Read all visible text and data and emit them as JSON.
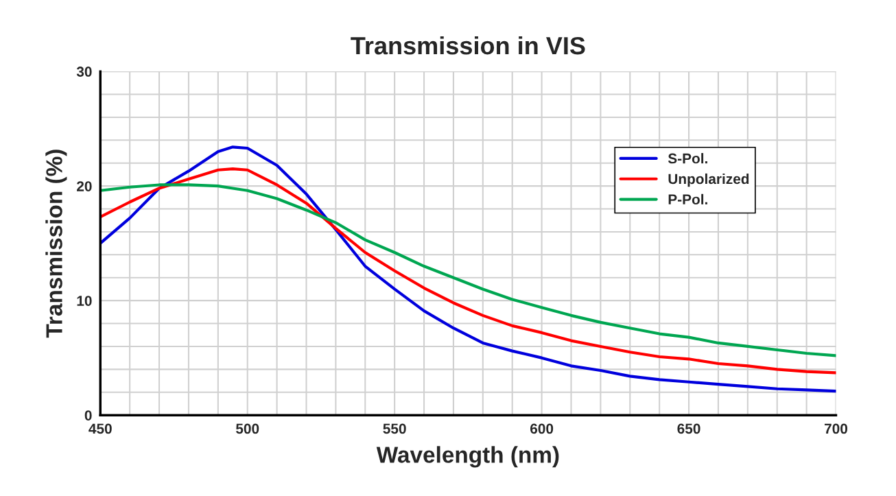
{
  "chart_data": {
    "type": "line",
    "title": "Transmission in VIS",
    "xlabel": "Wavelength (nm)",
    "ylabel": "Transmission (%)",
    "x": [
      450,
      460,
      470,
      480,
      490,
      495,
      500,
      510,
      520,
      530,
      540,
      550,
      560,
      570,
      580,
      590,
      600,
      610,
      620,
      630,
      640,
      650,
      660,
      670,
      680,
      690,
      700
    ],
    "series": [
      {
        "name": "S-Pol.",
        "color": "#0000dd",
        "values": [
          15.0,
          17.2,
          19.8,
          21.3,
          23.0,
          23.4,
          23.3,
          21.8,
          19.3,
          16.2,
          13.0,
          11.0,
          9.1,
          7.6,
          6.3,
          5.6,
          5.0,
          4.3,
          3.9,
          3.4,
          3.1,
          2.9,
          2.7,
          2.5,
          2.3,
          2.2,
          2.1
        ]
      },
      {
        "name": "Unpolarized",
        "color": "#ff0000",
        "values": [
          17.3,
          18.6,
          19.8,
          20.6,
          21.4,
          21.5,
          21.4,
          20.1,
          18.5,
          16.3,
          14.2,
          12.6,
          11.1,
          9.8,
          8.7,
          7.8,
          7.2,
          6.5,
          6.0,
          5.5,
          5.1,
          4.9,
          4.5,
          4.3,
          4.0,
          3.8,
          3.7
        ]
      },
      {
        "name": "P-Pol.",
        "color": "#00a651",
        "values": [
          19.6,
          19.9,
          20.1,
          20.1,
          20.0,
          19.8,
          19.6,
          18.9,
          17.9,
          16.8,
          15.3,
          14.2,
          13.0,
          12.0,
          11.0,
          10.1,
          9.4,
          8.7,
          8.1,
          7.6,
          7.1,
          6.8,
          6.3,
          6.0,
          5.7,
          5.4,
          5.2
        ]
      }
    ],
    "xlim": [
      450,
      700
    ],
    "ylim": [
      0,
      30
    ],
    "xticks": [
      450,
      {
        "value": 460,
        "label": null
      },
      {
        "value": 470,
        "label": null
      },
      {
        "value": 480,
        "label": null
      },
      {
        "value": 490,
        "label": null
      },
      500,
      {
        "value": 510,
        "label": null
      },
      {
        "value": 520,
        "label": null
      },
      {
        "value": 530,
        "label": null
      },
      {
        "value": 540,
        "label": null
      },
      550,
      {
        "value": 560,
        "label": null
      },
      {
        "value": 570,
        "label": null
      },
      {
        "value": 580,
        "label": null
      },
      {
        "value": 590,
        "label": null
      },
      600,
      {
        "value": 610,
        "label": null
      },
      {
        "value": 620,
        "label": null
      },
      {
        "value": 630,
        "label": null
      },
      {
        "value": 640,
        "label": null
      },
      650,
      {
        "value": 660,
        "label": null
      },
      {
        "value": 670,
        "label": null
      },
      {
        "value": 680,
        "label": null
      },
      {
        "value": 690,
        "label": null
      },
      700
    ],
    "yticks": [
      0,
      {
        "value": 2,
        "label": null
      },
      {
        "value": 4,
        "label": null
      },
      {
        "value": 6,
        "label": null
      },
      {
        "value": 8,
        "label": null
      },
      10,
      {
        "value": 12,
        "label": null
      },
      {
        "value": 14,
        "label": null
      },
      {
        "value": 16,
        "label": null
      },
      {
        "value": 18,
        "label": null
      },
      20,
      {
        "value": 22,
        "label": null
      },
      {
        "value": 24,
        "label": null
      },
      {
        "value": 26,
        "label": null
      },
      {
        "value": 28,
        "label": null
      },
      30
    ],
    "grid": true,
    "legend": "top right",
    "marker": "none",
    "line_style": "solid"
  }
}
